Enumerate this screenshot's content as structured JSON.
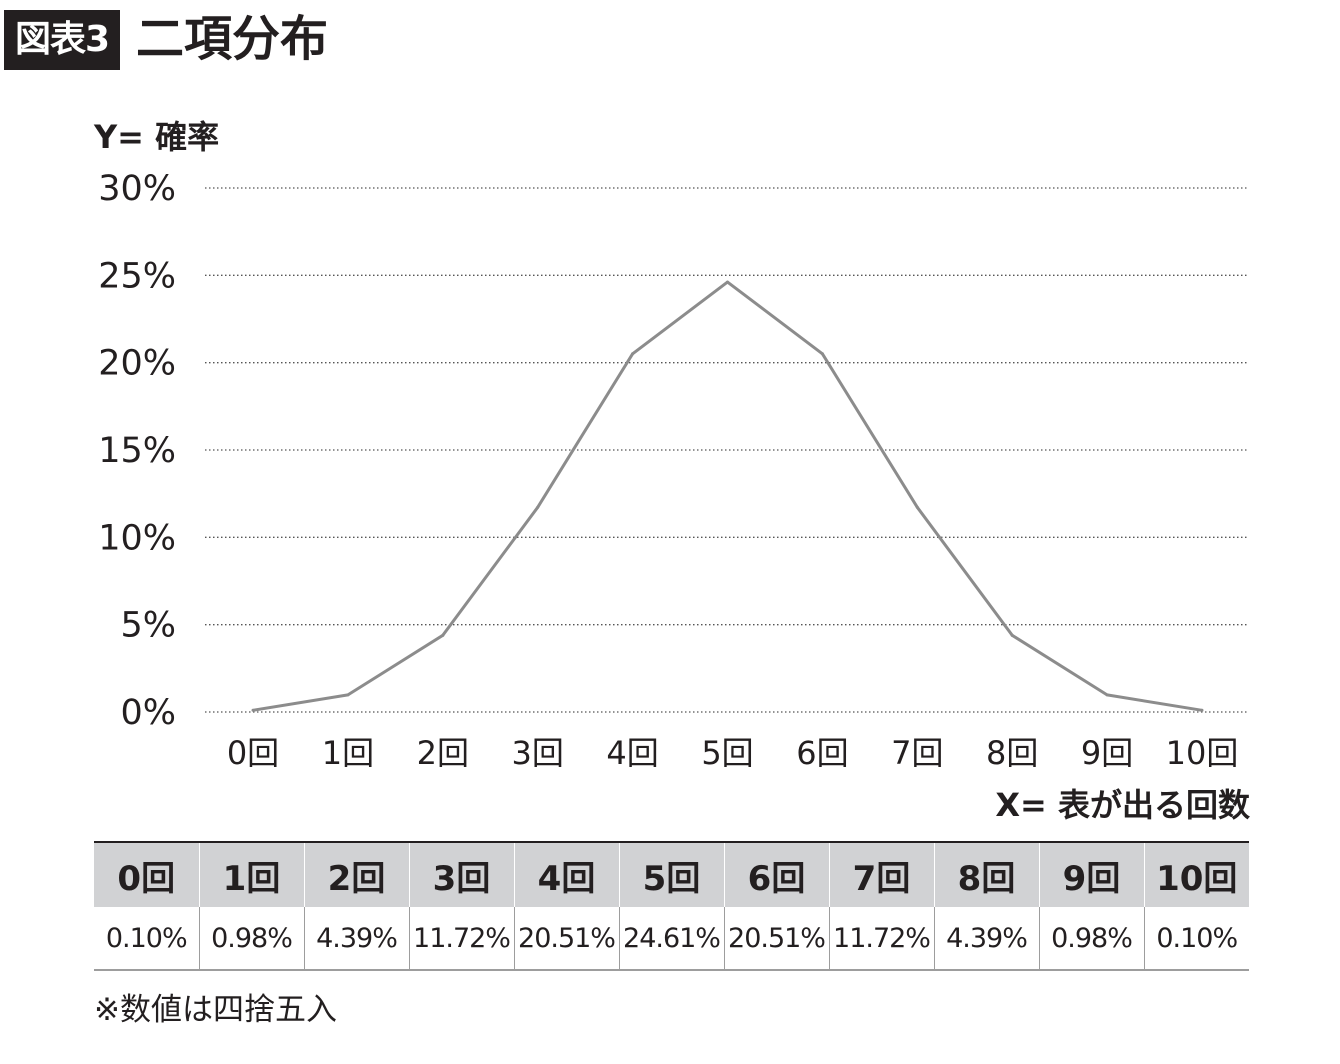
{
  "figure": {
    "badge": "図表3",
    "title": "二項分布",
    "note": "※数値は四捨五入"
  },
  "chart_data": {
    "type": "line",
    "title": "二項分布",
    "ylabel": "Y= 確率",
    "xlabel": "X= 表が出る回数",
    "categories": [
      "0回",
      "1回",
      "2回",
      "3回",
      "4回",
      "5回",
      "6回",
      "7回",
      "8回",
      "9回",
      "10回"
    ],
    "values": [
      0.1,
      0.98,
      4.39,
      11.72,
      20.51,
      24.61,
      20.51,
      11.72,
      4.39,
      0.98,
      0.1
    ],
    "yticks": [
      "0%",
      "5%",
      "10%",
      "15%",
      "20%",
      "25%",
      "30%"
    ],
    "ylim": [
      0,
      30
    ],
    "grid": true,
    "line_color": "#8c8c8c",
    "grid_color": "#555555"
  },
  "table": {
    "headers": [
      "0回",
      "1回",
      "2回",
      "3回",
      "4回",
      "5回",
      "6回",
      "7回",
      "8回",
      "9回",
      "10回"
    ],
    "values": [
      "0.10%",
      "0.98%",
      "4.39%",
      "11.72%",
      "20.51%",
      "24.61%",
      "20.51%",
      "11.72%",
      "4.39%",
      "0.98%",
      "0.10%"
    ]
  }
}
